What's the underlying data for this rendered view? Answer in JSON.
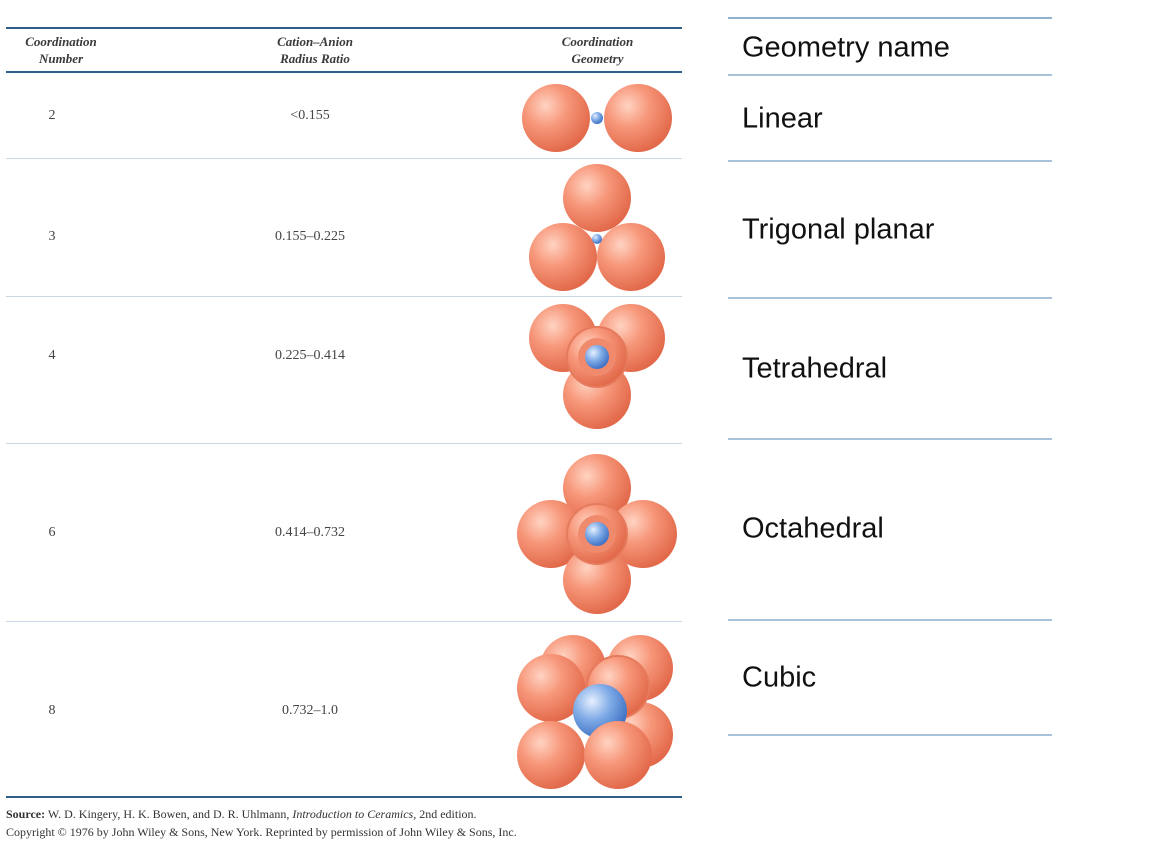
{
  "table": {
    "headers": {
      "coordination_number": [
        "Coordination",
        "Number"
      ],
      "radius_ratio": [
        "Cation–Anion",
        "Radius Ratio"
      ],
      "geometry": [
        "Coordination",
        "Geometry"
      ]
    },
    "rows": [
      {
        "cn": "2",
        "ratio": "<0.155",
        "geometry": "linear"
      },
      {
        "cn": "3",
        "ratio": "0.155–0.225",
        "geometry": "trigonal-planar"
      },
      {
        "cn": "4",
        "ratio": "0.225–0.414",
        "geometry": "tetrahedral"
      },
      {
        "cn": "6",
        "ratio": "0.414–0.732",
        "geometry": "octahedral"
      },
      {
        "cn": "8",
        "ratio": "0.732–1.0",
        "geometry": "cubic"
      }
    ]
  },
  "source": {
    "label": "Source:",
    "authors": "W. D. Kingery, H. K. Bowen, and D. R. Uhlmann,",
    "book": "Introduction to Ceramics,",
    "edition": "2nd edition.",
    "copyright": "Copyright © 1976 by John Wiley & Sons, New York. Reprinted by permission of John Wiley & Sons, Inc."
  },
  "geometry_names": {
    "header": "Geometry name",
    "items": [
      "Linear",
      "Trigonal planar",
      "Tetrahedral",
      "Octahedral",
      "Cubic"
    ]
  },
  "colors": {
    "anion": "#f5896a",
    "cation": "#6f9fe0",
    "table_rule": "#2f5f86",
    "right_rule": "#a9c3dc"
  }
}
